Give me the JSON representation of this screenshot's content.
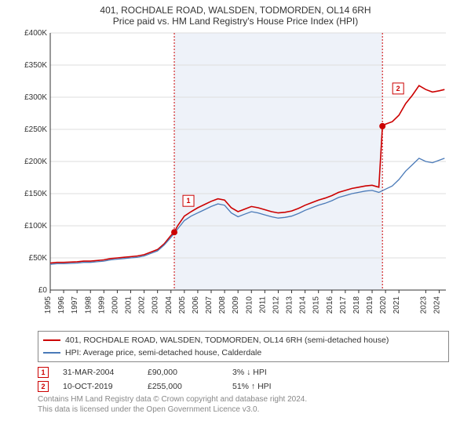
{
  "title": {
    "line1": "401, ROCHDALE ROAD, WALSDEN, TODMORDEN, OL14 6RH",
    "line2": "Price paid vs. HM Land Registry's House Price Index (HPI)"
  },
  "title_fontsize": 12,
  "chart": {
    "type": "line",
    "background_color": "#ffffff",
    "plot_background": "#ffffff",
    "grid_color": "#dddddd",
    "axis_color": "#333333",
    "tick_label_fontsize": 10,
    "shade": {
      "x_start": 2004.25,
      "x_end": 2019.77,
      "fill": "#eef2f9"
    },
    "vlines": [
      {
        "x": 2004.25,
        "color": "#cc0000",
        "dash": "2,2"
      },
      {
        "x": 2019.77,
        "color": "#cc0000",
        "dash": "2,2"
      }
    ],
    "y": {
      "min": 0,
      "max": 400000,
      "tick_step": 50000,
      "tick_labels": [
        "£0",
        "£50K",
        "£100K",
        "£150K",
        "£200K",
        "£250K",
        "£300K",
        "£350K",
        "£400K"
      ]
    },
    "x": {
      "min": 1995,
      "max": 2024.5,
      "ticks": [
        1995,
        1996,
        1997,
        1998,
        1999,
        2000,
        2001,
        2002,
        2003,
        2004,
        2005,
        2006,
        2007,
        2008,
        2009,
        2010,
        2011,
        2012,
        2013,
        2014,
        2015,
        2016,
        2017,
        2018,
        2019,
        2020,
        2021,
        2023,
        2024
      ],
      "tick_labels": [
        "1995",
        "1996",
        "1997",
        "1998",
        "1999",
        "2000",
        "2001",
        "2002",
        "2003",
        "2004",
        "2005",
        "2006",
        "2007",
        "2008",
        "2009",
        "2010",
        "2011",
        "2012",
        "2013",
        "2014",
        "2015",
        "2016",
        "2017",
        "2018",
        "2019",
        "2020",
        "2021",
        "2023",
        "2024"
      ]
    },
    "series": [
      {
        "name": "subject",
        "color": "#cc0000",
        "width": 1.6,
        "points": [
          [
            1995.0,
            42000
          ],
          [
            1995.5,
            43000
          ],
          [
            1996.0,
            43000
          ],
          [
            1996.5,
            43500
          ],
          [
            1997.0,
            44000
          ],
          [
            1997.5,
            45000
          ],
          [
            1998.0,
            45000
          ],
          [
            1998.5,
            46000
          ],
          [
            1999.0,
            47000
          ],
          [
            1999.5,
            49000
          ],
          [
            2000.0,
            50000
          ],
          [
            2000.5,
            51000
          ],
          [
            2001.0,
            52000
          ],
          [
            2001.5,
            53000
          ],
          [
            2002.0,
            55000
          ],
          [
            2002.5,
            59000
          ],
          [
            2003.0,
            63000
          ],
          [
            2003.5,
            72000
          ],
          [
            2004.0,
            85000
          ],
          [
            2004.25,
            90000
          ],
          [
            2004.5,
            100000
          ],
          [
            2005.0,
            115000
          ],
          [
            2005.5,
            122000
          ],
          [
            2006.0,
            128000
          ],
          [
            2006.5,
            133000
          ],
          [
            2007.0,
            138000
          ],
          [
            2007.5,
            142000
          ],
          [
            2008.0,
            140000
          ],
          [
            2008.5,
            128000
          ],
          [
            2009.0,
            122000
          ],
          [
            2009.5,
            126000
          ],
          [
            2010.0,
            130000
          ],
          [
            2010.5,
            128000
          ],
          [
            2011.0,
            125000
          ],
          [
            2011.5,
            122000
          ],
          [
            2012.0,
            120000
          ],
          [
            2012.5,
            121000
          ],
          [
            2013.0,
            123000
          ],
          [
            2013.5,
            127000
          ],
          [
            2014.0,
            132000
          ],
          [
            2014.5,
            136000
          ],
          [
            2015.0,
            140000
          ],
          [
            2015.5,
            143000
          ],
          [
            2016.0,
            147000
          ],
          [
            2016.5,
            152000
          ],
          [
            2017.0,
            155000
          ],
          [
            2017.5,
            158000
          ],
          [
            2018.0,
            160000
          ],
          [
            2018.5,
            162000
          ],
          [
            2019.0,
            163000
          ],
          [
            2019.5,
            160000
          ],
          [
            2019.77,
            255000
          ],
          [
            2020.0,
            258000
          ],
          [
            2020.5,
            262000
          ],
          [
            2021.0,
            272000
          ],
          [
            2021.5,
            290000
          ],
          [
            2022.0,
            303000
          ],
          [
            2022.5,
            318000
          ],
          [
            2023.0,
            312000
          ],
          [
            2023.5,
            308000
          ],
          [
            2024.0,
            310000
          ],
          [
            2024.4,
            312000
          ]
        ]
      },
      {
        "name": "hpi",
        "color": "#4a7ab8",
        "width": 1.3,
        "points": [
          [
            1995.0,
            40000
          ],
          [
            1995.5,
            41000
          ],
          [
            1996.0,
            41000
          ],
          [
            1996.5,
            41500
          ],
          [
            1997.0,
            42000
          ],
          [
            1997.5,
            43000
          ],
          [
            1998.0,
            43000
          ],
          [
            1998.5,
            44000
          ],
          [
            1999.0,
            45000
          ],
          [
            1999.5,
            47000
          ],
          [
            2000.0,
            48000
          ],
          [
            2000.5,
            49000
          ],
          [
            2001.0,
            50000
          ],
          [
            2001.5,
            51000
          ],
          [
            2002.0,
            53000
          ],
          [
            2002.5,
            57000
          ],
          [
            2003.0,
            61000
          ],
          [
            2003.5,
            70000
          ],
          [
            2004.0,
            82000
          ],
          [
            2004.5,
            95000
          ],
          [
            2005.0,
            108000
          ],
          [
            2005.5,
            115000
          ],
          [
            2006.0,
            120000
          ],
          [
            2006.5,
            125000
          ],
          [
            2007.0,
            130000
          ],
          [
            2007.5,
            134000
          ],
          [
            2008.0,
            132000
          ],
          [
            2008.5,
            120000
          ],
          [
            2009.0,
            114000
          ],
          [
            2009.5,
            118000
          ],
          [
            2010.0,
            122000
          ],
          [
            2010.5,
            120000
          ],
          [
            2011.0,
            117000
          ],
          [
            2011.5,
            114000
          ],
          [
            2012.0,
            112000
          ],
          [
            2012.5,
            113000
          ],
          [
            2013.0,
            115000
          ],
          [
            2013.5,
            119000
          ],
          [
            2014.0,
            124000
          ],
          [
            2014.5,
            128000
          ],
          [
            2015.0,
            132000
          ],
          [
            2015.5,
            135000
          ],
          [
            2016.0,
            139000
          ],
          [
            2016.5,
            144000
          ],
          [
            2017.0,
            147000
          ],
          [
            2017.5,
            150000
          ],
          [
            2018.0,
            152000
          ],
          [
            2018.5,
            154000
          ],
          [
            2019.0,
            155000
          ],
          [
            2019.5,
            152000
          ],
          [
            2020.0,
            157000
          ],
          [
            2020.5,
            162000
          ],
          [
            2021.0,
            172000
          ],
          [
            2021.5,
            185000
          ],
          [
            2022.0,
            195000
          ],
          [
            2022.5,
            205000
          ],
          [
            2023.0,
            200000
          ],
          [
            2023.5,
            198000
          ],
          [
            2024.0,
            202000
          ],
          [
            2024.4,
            205000
          ]
        ]
      }
    ],
    "marker_points": [
      {
        "n": "1",
        "x": 2004.25,
        "y": 90000,
        "color": "#cc0000",
        "badge_offset_x": 18,
        "badge_offset_y": -40
      },
      {
        "n": "2",
        "x": 2019.77,
        "y": 255000,
        "color": "#cc0000",
        "badge_offset_x": 20,
        "badge_offset_y": -48
      }
    ]
  },
  "legend": {
    "items": [
      {
        "color": "#cc0000",
        "label": "401, ROCHDALE ROAD, WALSDEN, TODMORDEN, OL14 6RH (semi-detached house)"
      },
      {
        "color": "#4a7ab8",
        "label": "HPI: Average price, semi-detached house, Calderdale"
      }
    ]
  },
  "marker_rows": [
    {
      "n": "1",
      "color": "#cc0000",
      "date": "31-MAR-2004",
      "price": "£90,000",
      "pct": "3% ↓ HPI"
    },
    {
      "n": "2",
      "color": "#cc0000",
      "date": "10-OCT-2019",
      "price": "£255,000",
      "pct": "51% ↑ HPI"
    }
  ],
  "attribution": {
    "line1": "Contains HM Land Registry data © Crown copyright and database right 2024.",
    "line2": "This data is licensed under the Open Government Licence v3.0."
  }
}
